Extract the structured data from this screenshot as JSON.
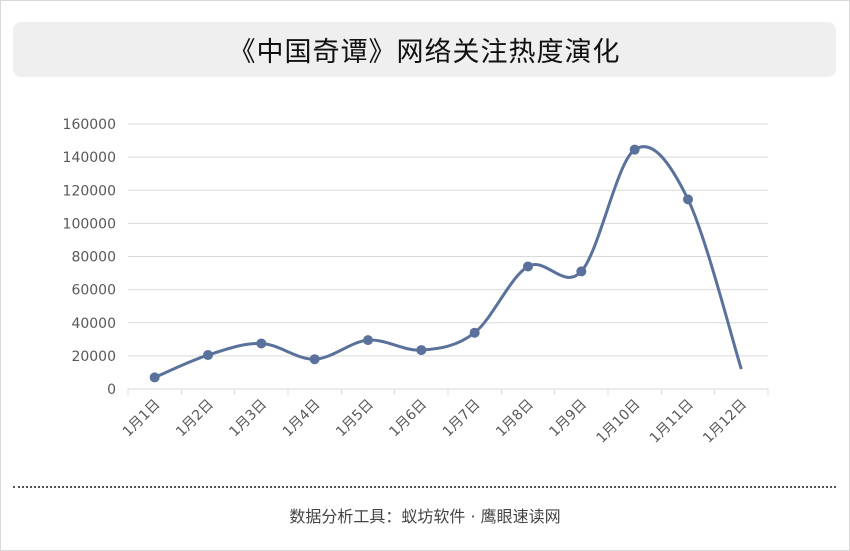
{
  "title": "《中国奇谭》网络关注热度演化",
  "source": "数据分析工具：蚁坊软件 · 鹰眼速读网",
  "colors": {
    "line": "#5a729b",
    "grid": "#d9d9d9",
    "axis_text": "#595959"
  },
  "chart_data": {
    "type": "line",
    "title": "《中国奇谭》网络关注热度演化",
    "categories": [
      "1月1日",
      "1月2日",
      "1月3日",
      "1月4日",
      "1月5日",
      "1月6日",
      "1月7日",
      "1月8日",
      "1月9日",
      "1月10日",
      "1月11日",
      "1月12日"
    ],
    "series": [
      {
        "values": [
          7000,
          20500,
          27500,
          18000,
          29500,
          23500,
          34000,
          74000,
          71000,
          144500,
          114500,
          12000
        ]
      }
    ],
    "yticks": [
      "0",
      "20000",
      "40000",
      "60000",
      "80000",
      "100000",
      "120000",
      "140000",
      "160000"
    ],
    "ylim": [
      0,
      160000
    ],
    "xlabel": "",
    "ylabel": "",
    "grid": true,
    "legend": "none",
    "markers": "circle",
    "smooth": true,
    "last_point_marker": false
  }
}
